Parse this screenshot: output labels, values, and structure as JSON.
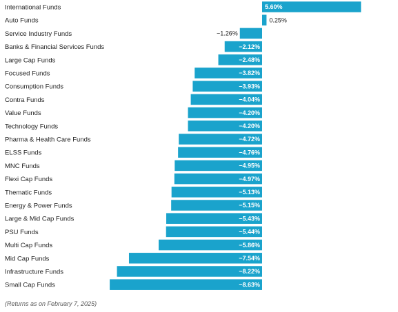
{
  "chart_data": {
    "type": "bar",
    "orientation": "horizontal",
    "categories": [
      "International Funds",
      "Auto Funds",
      "Service Industry Funds",
      "Banks & Financial Services Funds",
      "Large Cap Funds",
      "Focused Funds",
      "Consumption Funds",
      "Contra Funds",
      "Value Funds",
      "Technology Funds",
      "Pharma & Health Care Funds",
      "ELSS Funds",
      "MNC Funds",
      "Flexi Cap Funds",
      "Thematic Funds",
      "Energy & Power Funds",
      "Large & Mid Cap Funds",
      "PSU Funds",
      "Multi Cap Funds",
      "Mid Cap Funds",
      "Infrastructure Funds",
      "Small Cap Funds"
    ],
    "values": [
      5.6,
      0.25,
      -1.26,
      -2.12,
      -2.48,
      -3.82,
      -3.93,
      -4.04,
      -4.2,
      -4.2,
      -4.72,
      -4.76,
      -4.95,
      -4.97,
      -5.13,
      -5.15,
      -5.43,
      -5.44,
      -5.86,
      -7.54,
      -8.22,
      -8.63
    ],
    "value_labels": [
      "5.60%",
      "0.25%",
      "−1.26%",
      "−2.12%",
      "−2.48%",
      "−3.82%",
      "−3.93%",
      "−4.04%",
      "−4.20%",
      "−4.20%",
      "−4.72%",
      "−4.76%",
      "−4.95%",
      "−4.97%",
      "−5.13%",
      "−5.15%",
      "−5.43%",
      "−5.44%",
      "−5.86%",
      "−7.54%",
      "−8.22%",
      "−8.63%"
    ],
    "xlim": [
      -8.63,
      5.6
    ],
    "grid": false,
    "legend": "none",
    "bar_color": "#1aa3cc"
  },
  "footnote": "(Returns as on February 7, 2025)"
}
